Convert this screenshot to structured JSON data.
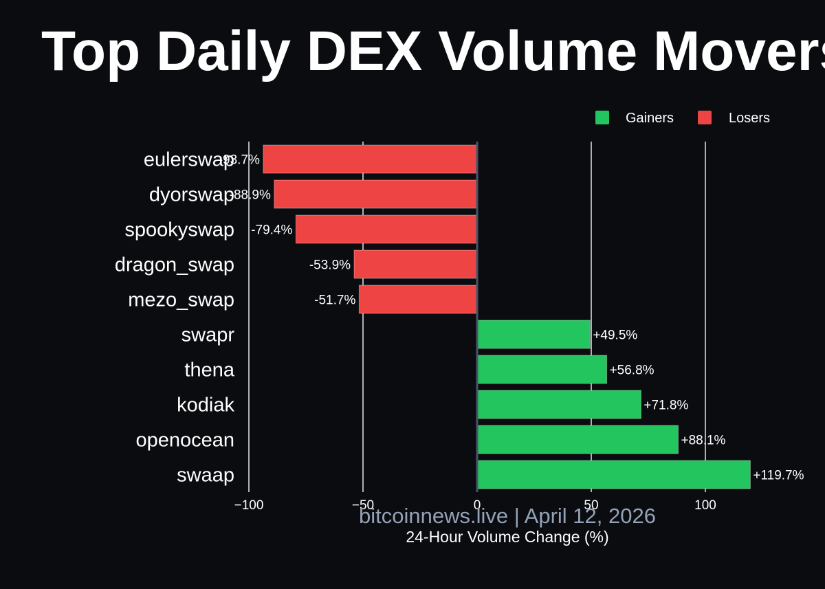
{
  "chart_data": {
    "type": "bar",
    "orientation": "horizontal",
    "title": "Top Daily DEX Volume Movers",
    "subtitle": "bitcoinnews.live | April 12, 2026",
    "xlabel": "24-Hour Volume Change (%)",
    "ylabel": "",
    "xlim": [
      -100,
      120
    ],
    "xticks": [
      -100,
      -50,
      0,
      50,
      100
    ],
    "xtick_labels": [
      "−100",
      "−50",
      "0",
      "50",
      "100"
    ],
    "grid": true,
    "legend_position": "top-right",
    "legend": [
      {
        "name": "Gainers",
        "color": "#22c55e"
      },
      {
        "name": "Losers",
        "color": "#ef4444"
      }
    ],
    "categories": [
      "eulerswap",
      "dyorswap",
      "spookyswap",
      "dragon_swap",
      "mezo_swap",
      "swapr",
      "thena",
      "kodiak",
      "openocean",
      "swaap"
    ],
    "values": [
      -93.7,
      -88.9,
      -79.4,
      -53.9,
      -51.7,
      49.5,
      56.8,
      71.8,
      88.1,
      119.7
    ],
    "data_labels": [
      "-93.7%",
      "-88.9%",
      "-79.4%",
      "-53.9%",
      "-51.7%",
      "+49.5%",
      "+56.8%",
      "+71.8%",
      "+88.1%",
      "+119.7%"
    ],
    "series": [
      {
        "name": "Losers",
        "color": "#ef4444"
      },
      {
        "name": "Gainers",
        "color": "#22c55e"
      }
    ]
  }
}
